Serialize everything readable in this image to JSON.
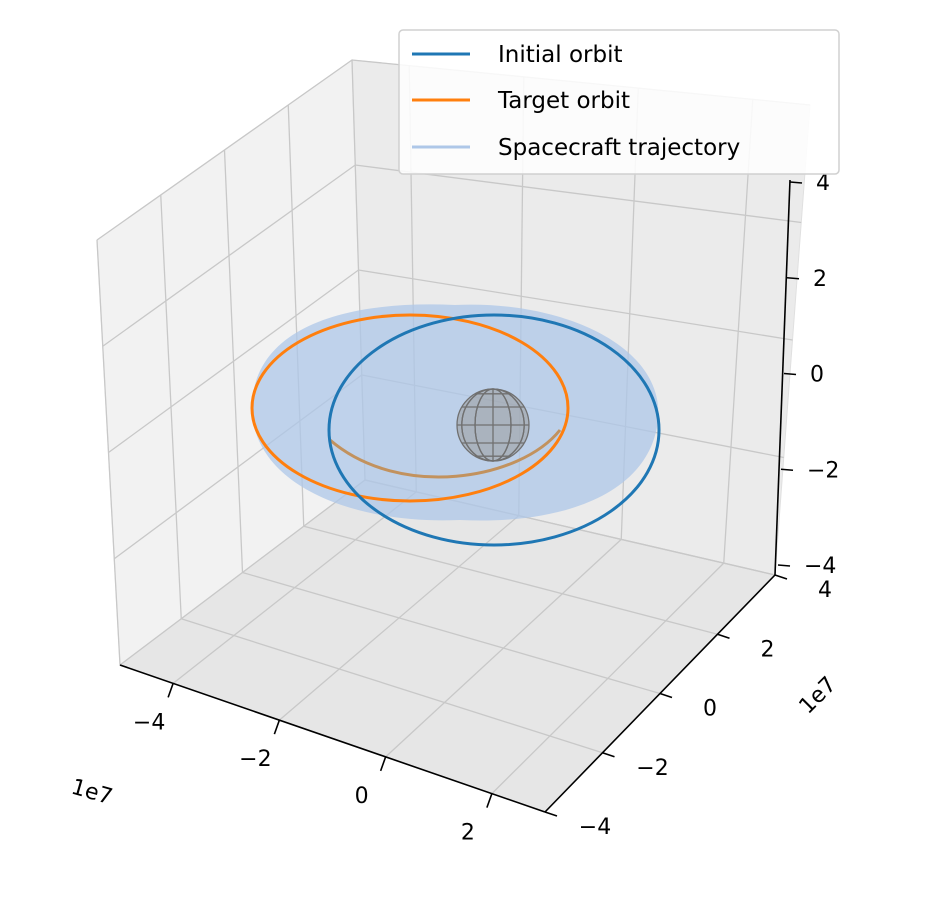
{
  "chart_data": {
    "type": "line",
    "projection": "3d",
    "series": [
      {
        "name": "Initial orbit",
        "color": "#1f77b4",
        "kind": "ellipse",
        "center": [
          5000000.0,
          0.0,
          -5000000.0
        ],
        "semi_axes": [
          24000000.0,
          24000000.0
        ]
      },
      {
        "name": "Target orbit",
        "color": "#ff7f0e",
        "kind": "ellipse",
        "center": [
          -18000000.0,
          8000000.0,
          2000000.0
        ],
        "semi_axes": [
          22000000.0,
          22000000.0
        ]
      },
      {
        "name": "Spacecraft trajectory",
        "color": "#aec7e8",
        "kind": "transfer-surface"
      }
    ],
    "central_body": {
      "type": "sphere",
      "radius": 6000000.0,
      "color": "#808080"
    },
    "x_axis": {
      "offset_label": "1e7",
      "ticks": [
        "−4",
        "−2",
        "0",
        "2"
      ],
      "range": [
        -50000000.0,
        30000000.0
      ]
    },
    "y_axis": {
      "offset_label": "1e7",
      "ticks": [
        "−4",
        "−2",
        "0",
        "2",
        "4"
      ],
      "range": [
        -40000000.0,
        40000000.0
      ]
    },
    "z_axis": {
      "ticks": [
        "−4",
        "−2",
        "0",
        "2",
        "4"
      ],
      "range": [
        -40000000.0,
        40000000.0
      ]
    },
    "legend": {
      "placement": "top-right"
    },
    "grid": true
  }
}
